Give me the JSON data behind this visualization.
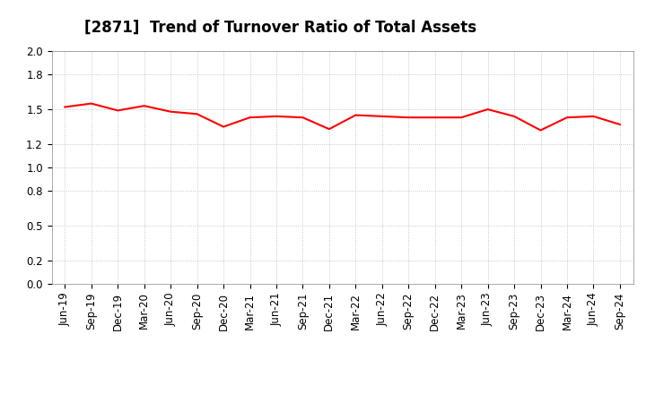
{
  "title": "[2871]  Trend of Turnover Ratio of Total Assets",
  "x_labels": [
    "Jun-19",
    "Sep-19",
    "Dec-19",
    "Mar-20",
    "Jun-20",
    "Sep-20",
    "Dec-20",
    "Mar-21",
    "Jun-21",
    "Sep-21",
    "Dec-21",
    "Mar-22",
    "Jun-22",
    "Sep-22",
    "Dec-22",
    "Mar-23",
    "Jun-23",
    "Sep-23",
    "Dec-23",
    "Mar-24",
    "Jun-24",
    "Sep-24"
  ],
  "values": [
    1.52,
    1.55,
    1.49,
    1.53,
    1.48,
    1.46,
    1.35,
    1.43,
    1.44,
    1.43,
    1.33,
    1.45,
    1.44,
    1.43,
    1.43,
    1.43,
    1.5,
    1.44,
    1.32,
    1.43,
    1.44,
    1.37
  ],
  "line_color": "#ff0000",
  "line_width": 1.5,
  "ylim": [
    0.0,
    2.0
  ],
  "yticks": [
    0.0,
    0.2,
    0.5,
    0.8,
    1.0,
    1.2,
    1.5,
    1.8,
    2.0
  ],
  "background_color": "#ffffff",
  "grid_color": "#bbbbbb",
  "title_fontsize": 12,
  "tick_fontsize": 8.5
}
